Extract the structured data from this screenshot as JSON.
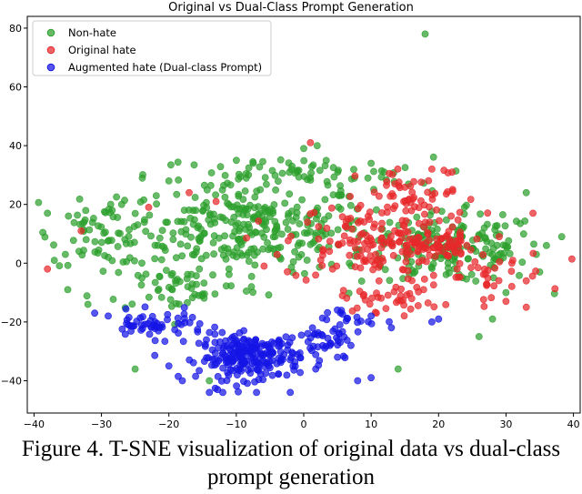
{
  "caption": "Figure 4. T-SNE visualization of original data vs dual-class prompt generation",
  "chart_data": {
    "type": "scatter",
    "title": "Original vs Dual-Class Prompt Generation",
    "xlabel": "",
    "ylabel": "",
    "xlim": [
      -41,
      41
    ],
    "ylim": [
      -51,
      84
    ],
    "xticks": [
      -40,
      -30,
      -20,
      -10,
      0,
      10,
      20,
      30,
      40
    ],
    "yticks": [
      -40,
      -20,
      0,
      20,
      40,
      60,
      80
    ],
    "grid": false,
    "legend_position": "top-left",
    "series": [
      {
        "name": "Non-hate",
        "color": "#2ca02c",
        "clusters": [
          {
            "center": [
              -8,
              12
            ],
            "spread": [
              12,
              10
            ],
            "count": 300
          },
          {
            "center": [
              22,
              5
            ],
            "spread": [
              9,
              8
            ],
            "count": 180
          },
          {
            "center": [
              -30,
              10
            ],
            "spread": [
              5,
              7
            ],
            "count": 60
          },
          {
            "center": [
              -2,
              30
            ],
            "spread": [
              14,
              4
            ],
            "count": 70
          },
          {
            "center": [
              -18,
              -8
            ],
            "spread": [
              8,
              6
            ],
            "count": 50
          }
        ],
        "points": [
          [
            18,
            78
          ],
          [
            -38,
            17
          ],
          [
            -37,
            1
          ],
          [
            -35,
            -9
          ],
          [
            -32,
            -14
          ],
          [
            -27,
            20
          ],
          [
            0,
            39
          ],
          [
            2,
            40
          ],
          [
            -25,
            -36
          ],
          [
            -14,
            -40
          ],
          [
            14,
            -36
          ],
          [
            26,
            -25
          ],
          [
            36,
            6
          ],
          [
            35,
            -3
          ],
          [
            33,
            24
          ],
          [
            30,
            -10
          ],
          [
            28,
            -19
          ],
          [
            -20,
            28
          ],
          [
            -10,
            35
          ],
          [
            10,
            34
          ],
          [
            -24,
            0
          ],
          [
            -29,
            2
          ]
        ]
      },
      {
        "name": "Original hate",
        "color": "#e8282b",
        "clusters": [
          {
            "center": [
              9,
              7
            ],
            "spread": [
              8,
              9
            ],
            "count": 130
          },
          {
            "center": [
              19,
              6
            ],
            "spread": [
              4,
              3
            ],
            "count": 70
          },
          {
            "center": [
              17,
              22
            ],
            "spread": [
              6,
              7
            ],
            "count": 60
          },
          {
            "center": [
              13,
              -12
            ],
            "spread": [
              5,
              3
            ],
            "count": 40
          },
          {
            "center": [
              26,
              -4
            ],
            "spread": [
              7,
              6
            ],
            "count": 35
          }
        ],
        "points": [
          [
            -38,
            -2
          ],
          [
            1,
            41
          ],
          [
            -17,
            24
          ],
          [
            -13,
            21
          ],
          [
            -23,
            19
          ],
          [
            -33,
            11
          ],
          [
            31,
            1
          ],
          [
            33,
            -6
          ],
          [
            33,
            -15
          ],
          [
            30,
            -13
          ],
          [
            34,
            17
          ],
          [
            19,
            32
          ],
          [
            22,
            31
          ],
          [
            29,
            9
          ]
        ]
      },
      {
        "name": "Augmented hate (Dual-class Prompt)",
        "color": "#1515e6",
        "clusters": [
          {
            "center": [
              -8,
              -32
            ],
            "spread": [
              5,
              5
            ],
            "count": 220
          },
          {
            "center": [
              -22,
              -21
            ],
            "spread": [
              5,
              3
            ],
            "count": 55
          },
          {
            "center": [
              3,
              -27
            ],
            "spread": [
              4,
              5
            ],
            "count": 45
          },
          {
            "center": [
              6,
              -19
            ],
            "spread": [
              3,
              3
            ],
            "count": 15
          }
        ],
        "points": [
          [
            -31,
            -17
          ],
          [
            -29,
            -18
          ],
          [
            -26,
            -21
          ],
          [
            -14,
            -44
          ],
          [
            -12,
            -44
          ],
          [
            -7,
            -44
          ],
          [
            -2,
            -44
          ],
          [
            8,
            -40
          ],
          [
            10,
            -39
          ],
          [
            5,
            -32
          ],
          [
            7,
            -28
          ],
          [
            10,
            -18
          ],
          [
            13,
            -22
          ],
          [
            19,
            -20
          ],
          [
            20,
            -19
          ],
          [
            -18,
            -40
          ],
          [
            -20,
            -35
          ]
        ]
      }
    ]
  }
}
